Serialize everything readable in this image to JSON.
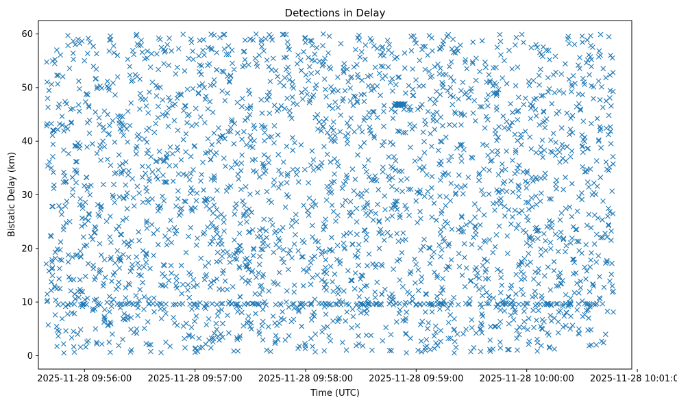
{
  "chart_data": {
    "type": "scatter",
    "title": "Detections in Delay",
    "xlabel": "Time (UTC)",
    "ylabel": "Bistatic Delay (km)",
    "marker": "x",
    "color": "#1f77b4",
    "xlim_seconds": [
      -25,
      297
    ],
    "ylim": [
      -2.5,
      62.5
    ],
    "x_ticks": [
      {
        "seconds": 0,
        "label": "2025-11-28 09:56:00"
      },
      {
        "seconds": 60,
        "label": "2025-11-28 09:57:00"
      },
      {
        "seconds": 120,
        "label": "2025-11-28 09:58:00"
      },
      {
        "seconds": 180,
        "label": "2025-11-28 09:59:00"
      },
      {
        "seconds": 240,
        "label": "2025-11-28 10:00:00"
      },
      {
        "seconds": 300,
        "label": "2025-11-28 10:01:00"
      }
    ],
    "y_ticks": [
      0,
      10,
      20,
      30,
      40,
      50,
      60
    ],
    "series": [
      {
        "name": "detections",
        "approx_count": 2800,
        "x_range_seconds": [
          -21,
          287
        ],
        "y_range": [
          0.5,
          60
        ],
        "dense_bands": [
          {
            "y": 9.6,
            "note": "horizontal band of repeated detections"
          },
          {
            "x_seconds": [
              168,
              174
            ],
            "y": 46.8,
            "note": "short dense cluster"
          }
        ],
        "sample_points": [
          [
            -20,
            48
          ],
          [
            -18,
            35
          ],
          [
            -15,
            57
          ],
          [
            -12,
            43
          ],
          [
            -8,
            25
          ],
          [
            -5,
            58
          ],
          [
            -2,
            12
          ],
          [
            0,
            55
          ],
          [
            3,
            30
          ],
          [
            6,
            5
          ],
          [
            10,
            40
          ],
          [
            14,
            18
          ],
          [
            18,
            52
          ],
          [
            22,
            9.6
          ],
          [
            26,
            33
          ],
          [
            30,
            46
          ],
          [
            35,
            2
          ],
          [
            40,
            27
          ],
          [
            45,
            58
          ],
          [
            50,
            14
          ],
          [
            55,
            38
          ],
          [
            60,
            9.6
          ],
          [
            65,
            50
          ],
          [
            70,
            22
          ],
          [
            75,
            6
          ],
          [
            80,
            44
          ],
          [
            85,
            31
          ],
          [
            90,
            59
          ],
          [
            95,
            17
          ],
          [
            100,
            36
          ],
          [
            105,
            3
          ],
          [
            110,
            48
          ],
          [
            115,
            25
          ],
          [
            120,
            9.6
          ],
          [
            125,
            55
          ],
          [
            130,
            39
          ],
          [
            135,
            12
          ],
          [
            140,
            28
          ],
          [
            145,
            52
          ],
          [
            150,
            8
          ],
          [
            155,
            42
          ],
          [
            160,
            20
          ],
          [
            165,
            57
          ],
          [
            170,
            46.8
          ],
          [
            175,
            33
          ],
          [
            180,
            9.6
          ],
          [
            185,
            1
          ],
          [
            190,
            47
          ],
          [
            195,
            24
          ],
          [
            200,
            59
          ],
          [
            205,
            15
          ],
          [
            210,
            37
          ],
          [
            215,
            5
          ],
          [
            220,
            51
          ],
          [
            225,
            29
          ],
          [
            230,
            11
          ],
          [
            235,
            44
          ],
          [
            240,
            21
          ],
          [
            245,
            58
          ],
          [
            250,
            34
          ],
          [
            255,
            7
          ],
          [
            260,
            49
          ],
          [
            265,
            18
          ],
          [
            270,
            39
          ],
          [
            275,
            2
          ],
          [
            280,
            56
          ],
          [
            284,
            26
          ],
          [
            287,
            12
          ]
        ]
      }
    ]
  }
}
